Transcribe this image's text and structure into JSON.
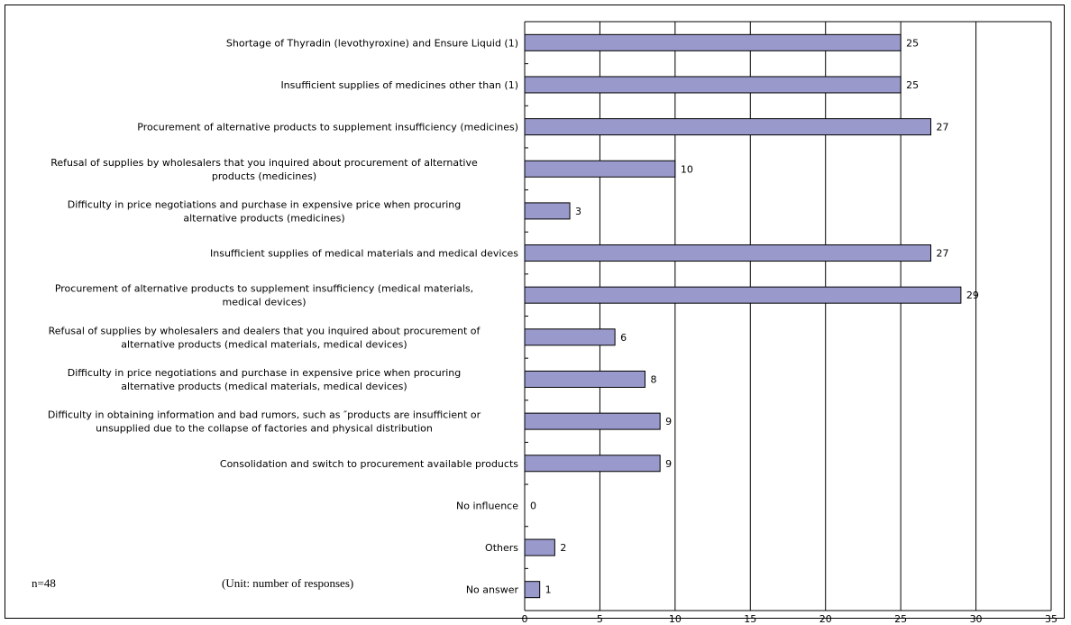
{
  "notes": {
    "n": "n=48",
    "unit": "(Unit: number of responses)"
  },
  "chart_data": {
    "type": "bar",
    "orientation": "horizontal",
    "title": "",
    "xlabel": "",
    "ylabel": "",
    "xlim": [
      0,
      35
    ],
    "x_ticks": [
      0,
      5,
      10,
      15,
      20,
      25,
      30,
      35
    ],
    "grid": "vertical",
    "bar_color": "#9999cc",
    "categories": [
      [
        "Shortage of Thyradin (levothyroxine) and Ensure Liquid (1)"
      ],
      [
        "Insufficient supplies of medicines other than (1)"
      ],
      [
        "Procurement of alternative products to supplement insufficiency (medicines)"
      ],
      [
        "Refusal of supplies by wholesalers that you inquired about procurement of alternative",
        "products (medicines)"
      ],
      [
        "Difficulty in price negotiations and purchase in expensive price when procuring",
        "alternative products (medicines)"
      ],
      [
        "Insufficient supplies of medical materials and medical devices"
      ],
      [
        "Procurement of alternative products to supplement insufficiency (medical materials,",
        "medical devices)"
      ],
      [
        "Refusal of supplies by wholesalers and dealers that you inquired about procurement of",
        "alternative products (medical materials, medical devices)"
      ],
      [
        "Difficulty in price negotiations and purchase in expensive price when procuring",
        "alternative products (medical materials, medical devices)"
      ],
      [
        "Difficulty in obtaining information and bad rumors, such as ″products are insufficient or",
        "unsupplied due to the collapse of factories and physical distribution"
      ],
      [
        "Consolidation and switch to procurement available products"
      ],
      [
        "No influence"
      ],
      [
        "Others"
      ],
      [
        "No answer"
      ]
    ],
    "values": [
      25,
      25,
      27,
      10,
      3,
      27,
      29,
      6,
      8,
      9,
      9,
      0,
      2,
      1
    ]
  }
}
